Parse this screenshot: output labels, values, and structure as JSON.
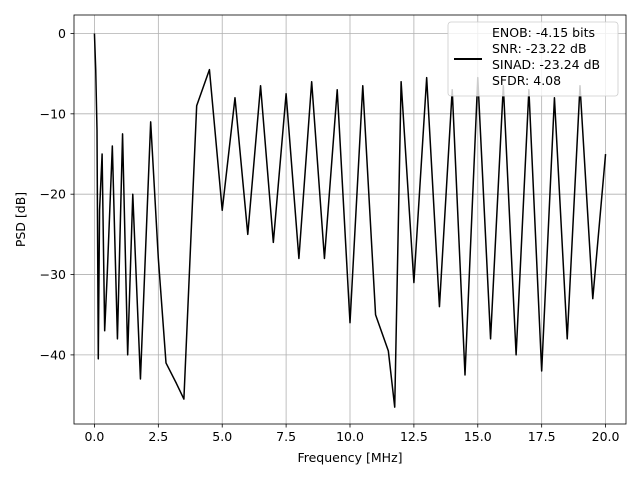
{
  "chart_data": {
    "type": "line",
    "xlabel": "Frequency [MHz]",
    "ylabel": "PSD [dB]",
    "xlim": [
      -0.8,
      20.8
    ],
    "ylim": [
      -48.6,
      2.3
    ],
    "x_ticks": [
      0.0,
      2.5,
      5.0,
      7.5,
      10.0,
      12.5,
      15.0,
      17.5,
      20.0
    ],
    "x_tick_labels": [
      "0.0",
      "2.5",
      "5.0",
      "7.5",
      "10.0",
      "12.5",
      "15.0",
      "17.5",
      "20.0"
    ],
    "y_ticks": [
      0,
      -10,
      -20,
      -30,
      -40
    ],
    "y_tick_labels": [
      "0",
      "−10",
      "−20",
      "−30",
      "−40"
    ],
    "grid": true,
    "line_color": "#000000",
    "legend": {
      "placement": "top-right",
      "entries": [
        "ENOB: -4.15 bits",
        "SNR: -23.22 dB",
        "SINAD: -23.24 dB",
        "SFDR: 4.08"
      ]
    },
    "series": [
      {
        "x": [
          0.0,
          0.05,
          0.1,
          0.15,
          0.2,
          0.3,
          0.4,
          0.5,
          0.7,
          0.9,
          1.1,
          1.3,
          1.5,
          1.8,
          2.2,
          2.5,
          2.8,
          3.2,
          3.5,
          4.0,
          4.5,
          5.0,
          5.5,
          6.0,
          6.5,
          7.0,
          7.5,
          8.0,
          8.5,
          9.0,
          9.5,
          10.0,
          10.5,
          11.0,
          11.5,
          11.75,
          12.0,
          12.5,
          13.0,
          13.5,
          14.0,
          14.5,
          15.0,
          15.5,
          16.0,
          16.5,
          17.0,
          17.5,
          18.0,
          18.5,
          19.0,
          19.5,
          20.0
        ],
        "y": [
          0.0,
          -4.5,
          -12.0,
          -40.5,
          -22.0,
          -15.0,
          -37.0,
          -30.0,
          -14.0,
          -38.0,
          -12.5,
          -40.0,
          -20.0,
          -43.0,
          -11.0,
          -28.0,
          -41.0,
          -43.5,
          -45.5,
          -9.0,
          -4.5,
          -22.0,
          -8.0,
          -25.0,
          -6.5,
          -26.0,
          -7.5,
          -28.0,
          -6.0,
          -28.0,
          -7.0,
          -36.0,
          -6.5,
          -35.0,
          -39.5,
          -46.5,
          -6.0,
          -31.0,
          -5.5,
          -34.0,
          -7.0,
          -42.5,
          -5.5,
          -38.0,
          -6.5,
          -40.0,
          -7.0,
          -42.0,
          -8.0,
          -38.0,
          -6.5,
          -33.0,
          -15.0
        ]
      }
    ]
  }
}
